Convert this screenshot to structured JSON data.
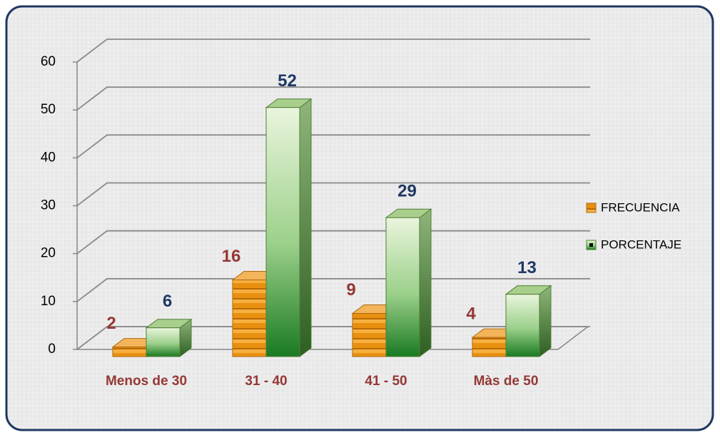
{
  "chart_data": {
    "type": "bar3d",
    "categories": [
      "Menos de 30",
      "31 - 40",
      "41 - 50",
      "Màs de 50"
    ],
    "series": [
      {
        "name": "FRECUENCIA",
        "color": "#e38b0a",
        "label_color": "#953735",
        "values": [
          2,
          16,
          9,
          4
        ]
      },
      {
        "name": "PORCENTAJE",
        "color": "#2e8b2e",
        "label_color": "#1f3864",
        "values": [
          6,
          52,
          29,
          13
        ]
      }
    ],
    "ylim": [
      0,
      60
    ],
    "yticks": [
      0,
      10,
      20,
      30,
      40,
      50,
      60
    ],
    "grid": true,
    "legend": "right"
  }
}
